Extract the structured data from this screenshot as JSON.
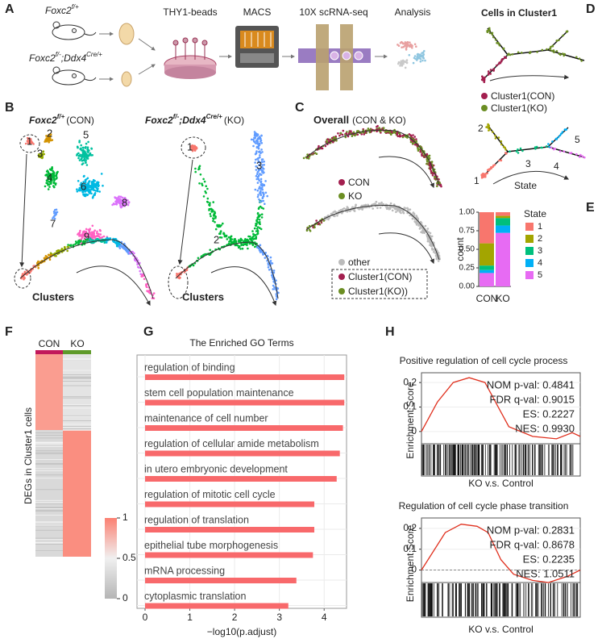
{
  "panel_letters": [
    "A",
    "B",
    "C",
    "D",
    "E",
    "F",
    "G",
    "H"
  ],
  "panel_a": {
    "con_gene": "Foxc2",
    "con_sup": "f/+",
    "ko_gene": "Foxc2",
    "ko_sup": "f/-",
    "ko_sep": ";",
    "ko_gene2": "Ddx4",
    "ko_sup2": "Cre/+",
    "steps": [
      "THY1-beads",
      "MACS",
      "10X scRNA-seq",
      "Analysis"
    ]
  },
  "panel_b": {
    "con_gene": "Foxc2",
    "con_sup": "f/+",
    "con_suffix": "(CON)",
    "ko_gene": "Foxc2",
    "ko_sup": "f/-",
    "ko_sep": ";",
    "ko_gene2": "Ddx4",
    "ko_sup2": "Cre/+",
    "ko_suffix": "(KO)",
    "con_clusters": [
      "1",
      "2",
      "3",
      "4",
      "5",
      "6",
      "7",
      "8",
      "9"
    ],
    "ko_clusters": [
      "1",
      "2",
      "3"
    ],
    "trajectory_label": "Clusters"
  },
  "panel_c": {
    "title": "Overall",
    "subtitle": "(CON & KO)",
    "legend_top": [
      "CON",
      "KO"
    ],
    "legend_bottom": [
      "other",
      "Cluster1(CON)",
      "Cluster1(KO))"
    ]
  },
  "panel_d": {
    "title": "Cells in Cluster1",
    "legend": [
      "Cluster1(CON)",
      "Cluster1(KO)"
    ],
    "states": [
      "1",
      "2",
      "3",
      "4",
      "5"
    ],
    "state_label": "State"
  },
  "panel_f": {
    "columns": [
      "CON",
      "KO"
    ],
    "ylabel": "DEGs in Cluster1 cells",
    "colorbar_ticks": [
      1,
      0.5,
      0
    ]
  },
  "chart_data": [
    {
      "type": "bar",
      "stacked": true,
      "categories": [
        "CON",
        "KO"
      ],
      "ylabel": "count",
      "legend_title": "State",
      "series": [
        {
          "name": "1",
          "color": "#f8766d",
          "values": [
            0.42,
            0.05
          ]
        },
        {
          "name": "2",
          "color": "#a3a500",
          "values": [
            0.3,
            0.03
          ]
        },
        {
          "name": "3",
          "color": "#00bf7d",
          "values": [
            0.06,
            0.1
          ]
        },
        {
          "name": "4",
          "color": "#00b0f6",
          "values": [
            0.04,
            0.1
          ]
        },
        {
          "name": "5",
          "color": "#e76bf3",
          "values": [
            0.18,
            0.72
          ]
        }
      ],
      "ylim": [
        0,
        1
      ],
      "yticks": [
        {
          "value": 0,
          "label": "0.00"
        },
        {
          "value": 0.25,
          "label": "0.25"
        },
        {
          "value": 0.5,
          "label": "0.50"
        },
        {
          "value": 0.75,
          "label": "0.75"
        },
        {
          "value": 1,
          "label": "1.00"
        }
      ]
    },
    {
      "type": "hbar",
      "title": "The Enriched GO Terms",
      "categories": [
        "regulation of binding",
        "stem cell population maintenance",
        "maintenance of cell number",
        "regulation of cellular amide metabolism",
        "in utero embryonic development",
        "regulation of mitotic cell cycle",
        "regulation of translation",
        "epithelial tube morphogenesis",
        "mRNA processing",
        "cytoplasmic translation"
      ],
      "values": [
        4.45,
        4.45,
        4.42,
        4.35,
        4.28,
        3.78,
        3.78,
        3.75,
        3.38,
        3.2
      ],
      "color": "#f8696b",
      "xlabel": "−log10(p.adjust)",
      "xlim": [
        -0.18,
        4.5
      ],
      "xticks": [
        0,
        1,
        2,
        3,
        4
      ],
      "grid": true
    },
    {
      "type": "line",
      "title": "Positive regulation of cell cycle process",
      "ylabel": "Enrichment Score",
      "xlabel": "KO v.s. Control",
      "annotations": [
        "NOM p-val: 0.4841",
        "FDR q-val: 0.9015",
        "ES: 0.2227",
        "NES: 0.9930"
      ],
      "x": [
        0,
        0.1,
        0.2,
        0.3,
        0.4,
        0.5,
        0.55,
        0.7,
        0.85,
        0.95,
        1
      ],
      "values": [
        0,
        0.12,
        0.2,
        0.22,
        0.2,
        0.08,
        0.02,
        -0.02,
        -0.03,
        -0.005,
        -0.02
      ],
      "color": "#e0301e",
      "xlim": [
        0,
        1
      ],
      "ylim": [
        -0.05,
        0.24
      ],
      "yticks": [
        0,
        0.1,
        0.2
      ],
      "zero_line": false
    },
    {
      "type": "line",
      "title": "Regulation of cell cycle phase transition",
      "ylabel": "Enrichment Score",
      "xlabel": "KO v.s. Control",
      "annotations": [
        "NOM p-val: 0.2831",
        "FDR q-val: 0.8678",
        "ES: 0.2235",
        "NES: 1.0511"
      ],
      "x": [
        0,
        0.15,
        0.25,
        0.35,
        0.42,
        0.5,
        0.58,
        0.7,
        0.8,
        0.92,
        1
      ],
      "values": [
        0,
        0.18,
        0.22,
        0.21,
        0.18,
        0.05,
        -0.02,
        -0.05,
        -0.06,
        -0.03,
        0
      ],
      "color": "#e0301e",
      "xlim": [
        0,
        1
      ],
      "ylim": [
        -0.06,
        0.25
      ],
      "yticks": [
        0,
        0.1,
        0.2
      ],
      "zero_line": true
    }
  ]
}
